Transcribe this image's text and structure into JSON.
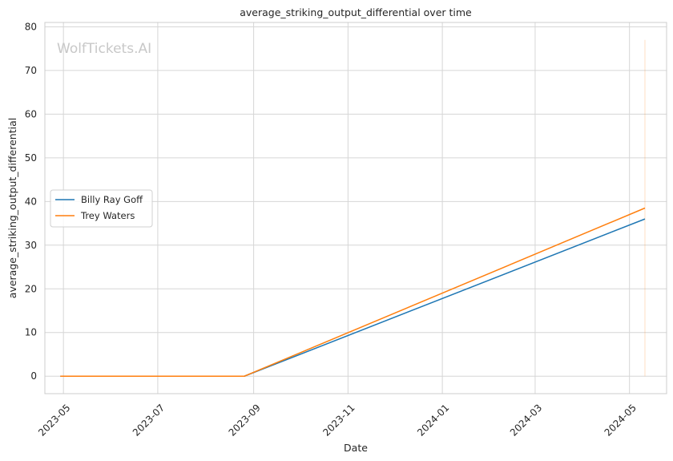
{
  "chart_data": {
    "type": "line",
    "title": "average_striking_output_differential over time",
    "xlabel": "Date",
    "ylabel": "average_striking_output_differential",
    "watermark": "WolfTickets.AI",
    "x_ticks": [
      "2023-05",
      "2023-07",
      "2023-09",
      "2023-11",
      "2024-01",
      "2024-03",
      "2024-05"
    ],
    "y_ticks": [
      0,
      10,
      20,
      30,
      40,
      50,
      60,
      70,
      80
    ],
    "ylim": [
      -4,
      81
    ],
    "xlim": [
      "2023-04-19",
      "2024-05-25"
    ],
    "grid": true,
    "legend_position": "center-left",
    "series": [
      {
        "name": "Billy Ray Goff",
        "color": "#1f77b4",
        "points": [
          {
            "x": "2023-04-29",
            "y": 0
          },
          {
            "x": "2023-08-26",
            "y": 0
          },
          {
            "x": "2024-05-11",
            "y": 36
          }
        ]
      },
      {
        "name": "Trey Waters",
        "color": "#ff7f0e",
        "points": [
          {
            "x": "2023-04-29",
            "y": 0
          },
          {
            "x": "2023-08-26",
            "y": 0
          },
          {
            "x": "2024-05-11",
            "y": 38.5
          }
        ]
      }
    ],
    "marker_line": {
      "x": "2024-05-11",
      "y_from": 0,
      "y_to": 77,
      "color": "#ff7f0e"
    }
  }
}
